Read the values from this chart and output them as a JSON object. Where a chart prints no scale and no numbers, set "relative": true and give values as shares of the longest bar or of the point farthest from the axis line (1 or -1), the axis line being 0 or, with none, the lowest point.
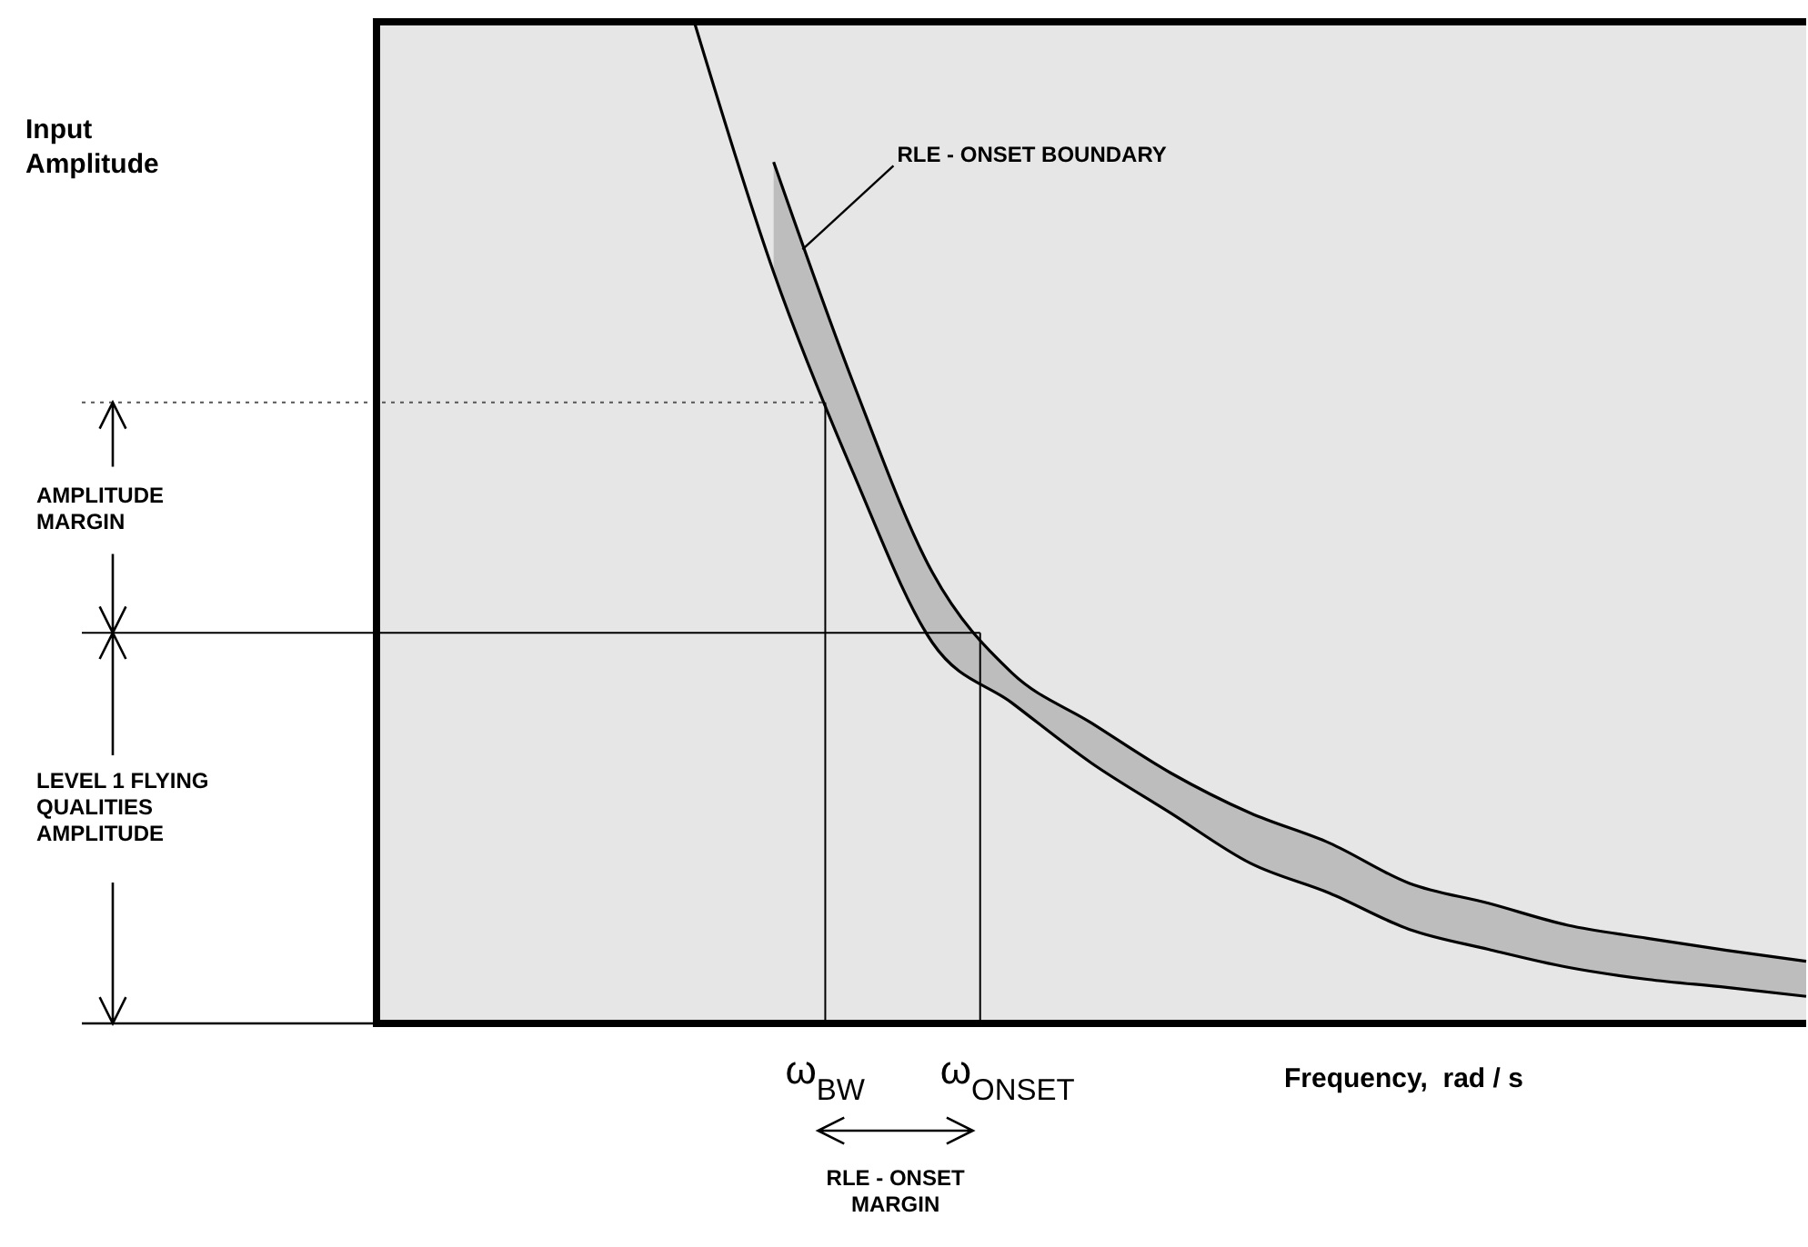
{
  "chart_data": {
    "type": "line",
    "relative": true,
    "xlabel": "Frequency,  rad / s",
    "categories": [
      null,
      null,
      null,
      null,
      null,
      null,
      null,
      null,
      null,
      null,
      null,
      null,
      null,
      null,
      null,
      null,
      null,
      null,
      null
    ],
    "series": [
      {
        "color": "#000000",
        "values": [
          null,
          null,
          null,
          null,
          1.0,
          0.75,
          0.55,
          0.38,
          0.32,
          0.26,
          0.21,
          0.16,
          0.13,
          0.094,
          0.074,
          0.056,
          0.044,
          0.036,
          0.027
        ],
        "lower": [
          null,
          null,
          null,
          null,
          null,
          0.75,
          0.55,
          0.38,
          0.32,
          0.26,
          0.21,
          0.16,
          0.13,
          0.094,
          0.074,
          0.056,
          0.044,
          0.036,
          0.027
        ],
        "upper": [
          null,
          null,
          null,
          null,
          null,
          0.86,
          0.64,
          0.45,
          0.35,
          0.3,
          0.25,
          0.21,
          0.18,
          0.14,
          0.12,
          0.098,
          0.085,
          0.073,
          0.062
        ]
      },
      {
        "color": "#000000",
        "values": [
          null,
          null,
          null,
          null,
          null,
          0.86,
          0.64,
          0.45,
          0.35,
          0.3,
          0.25,
          0.21,
          0.18,
          0.14,
          0.12,
          0.098,
          0.085,
          0.073,
          0.062
        ]
      }
    ],
    "ref_lines": [
      {
        "axis": "y",
        "value": 0.62,
        "color": "#555555",
        "line_style": "dotted"
      },
      {
        "axis": "y",
        "value": 0.39,
        "color": "#000000",
        "line_style": "solid"
      }
    ],
    "annotations": [
      "Input Amplitude",
      "RLE - ONSET BOUNDARY",
      "AMPLITUDE MARGIN",
      "LEVEL 1 FLYING QUALITIES AMPLITUDE",
      "ω$_{BW}$",
      "ω$_{ONSET}$",
      "RLE - ONSET MARGIN"
    ],
    "grid": false
  }
}
